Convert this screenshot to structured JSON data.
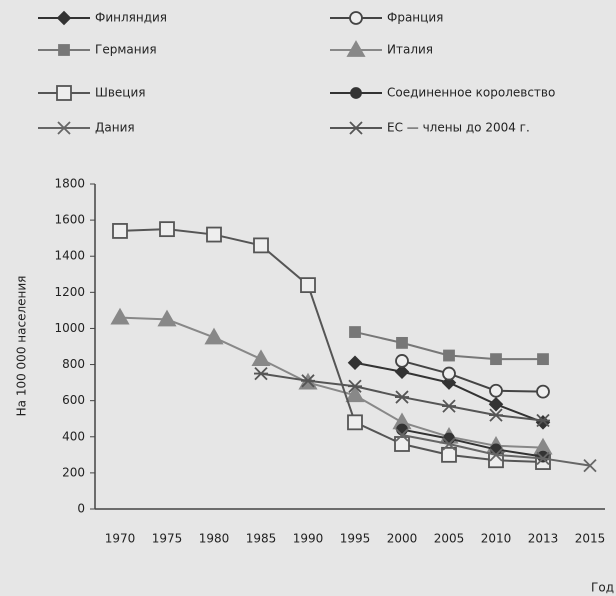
{
  "chart_data": {
    "type": "line",
    "categories": [
      "1970",
      "1975",
      "1980",
      "1985",
      "1990",
      "1995",
      "2000",
      "2005",
      "2010",
      "2013",
      "2015"
    ],
    "series": [
      {
        "name": "Финляндия",
        "color": "#333333",
        "marker": "diamond",
        "values": [
          null,
          null,
          null,
          null,
          null,
          810,
          760,
          700,
          580,
          480,
          null
        ]
      },
      {
        "name": "Франция",
        "color": "#444444",
        "marker": "open-circle",
        "values": [
          null,
          null,
          null,
          null,
          null,
          null,
          820,
          750,
          655,
          650,
          null
        ]
      },
      {
        "name": "Германия",
        "color": "#777777",
        "marker": "square",
        "values": [
          null,
          null,
          null,
          null,
          null,
          980,
          920,
          850,
          830,
          830,
          null
        ]
      },
      {
        "name": "Италия",
        "color": "#888888",
        "marker": "triangle",
        "values": [
          1060,
          1050,
          950,
          830,
          700,
          630,
          480,
          400,
          350,
          340,
          null
        ]
      },
      {
        "name": "Швеция",
        "color": "#555555",
        "marker": "open-square",
        "values": [
          1540,
          1550,
          1520,
          1460,
          1240,
          480,
          360,
          300,
          270,
          260,
          null
        ]
      },
      {
        "name": "Соединенное королевство",
        "color": "#333333",
        "marker": "circle",
        "values": [
          null,
          null,
          null,
          null,
          null,
          null,
          440,
          390,
          330,
          290,
          null
        ]
      },
      {
        "name": "Дания",
        "color": "#666666",
        "marker": "x",
        "values": [
          null,
          null,
          null,
          null,
          null,
          null,
          410,
          360,
          300,
          280,
          240
        ]
      },
      {
        "name": "ЕС — члены до 2004 г.",
        "color": "#555555",
        "marker": "star",
        "values": [
          null,
          null,
          null,
          750,
          710,
          680,
          620,
          570,
          520,
          490,
          null
        ]
      }
    ],
    "ylabel": "На 100 000 населения",
    "xlabel": "Год",
    "ylim": [
      0,
      1800
    ],
    "yticks": [
      0,
      200,
      400,
      600,
      800,
      1000,
      1200,
      1400,
      1600,
      1800
    ]
  }
}
